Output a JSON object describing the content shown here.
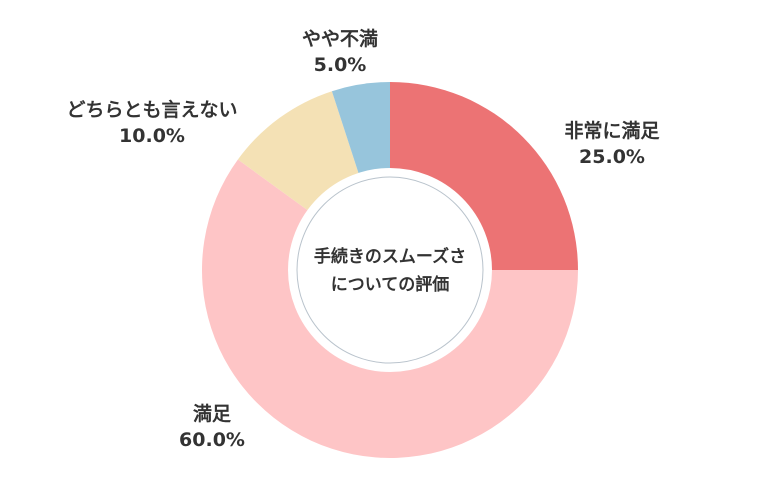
{
  "chart_data": {
    "type": "pie",
    "center_label": [
      "手続きのスムーズさ",
      "についての評価"
    ],
    "slices": [
      {
        "label": "非常に満足",
        "value": 25.0,
        "value_text": "25.0%",
        "color": "#ec7374"
      },
      {
        "label": "満足",
        "value": 60.0,
        "value_text": "60.0%",
        "color": "#fec5c6"
      },
      {
        "label": "どちらとも言えない",
        "value": 10.0,
        "value_text": "10.0%",
        "color": "#f4e1b5"
      },
      {
        "label": "やや不満",
        "value": 5.0,
        "value_text": "5.0%",
        "color": "#97c5dc"
      }
    ],
    "start_angle": "12 o'clock",
    "direction": "clockwise",
    "legend": "none"
  }
}
